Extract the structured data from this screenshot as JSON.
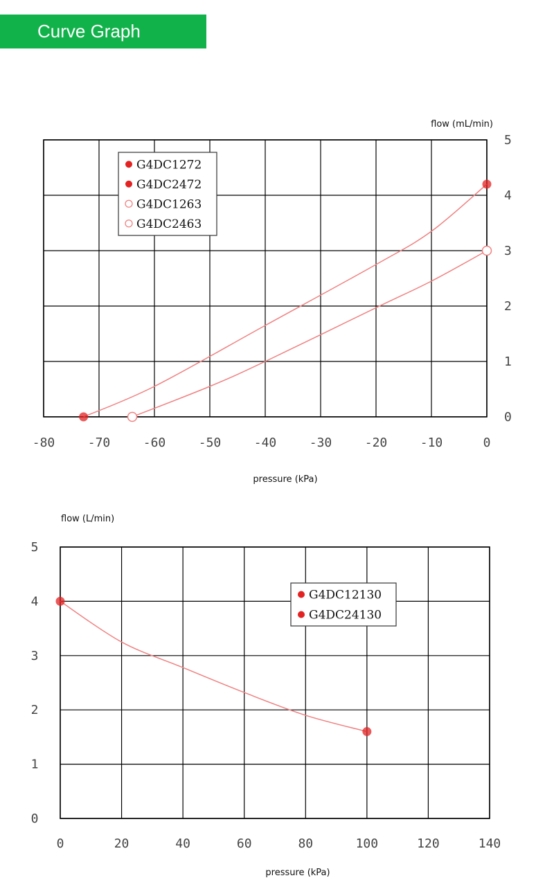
{
  "header": {
    "title": "Curve Graph"
  },
  "colors": {
    "header_bg": "#12b24b",
    "curve": "#f08080",
    "marker": "#e32222",
    "grid": "#000000"
  },
  "chart_data": [
    {
      "type": "line",
      "title": "",
      "xlabel": "pressure (kPa)",
      "ylabel": "flow (mL/min)",
      "xlim": [
        -80,
        0
      ],
      "ylim": [
        0,
        5
      ],
      "x_ticks": [
        "-80",
        "-70",
        "-60",
        "-50",
        "-40",
        "-30",
        "-20",
        "-10",
        "0"
      ],
      "y_ticks": [
        "0",
        "1",
        "2",
        "3",
        "4",
        "5"
      ],
      "grid": true,
      "legend": [
        "G4DC1272",
        "G4DC2472",
        "G4DC1263",
        "G4DC2463"
      ],
      "legend_position": "top-left",
      "series": [
        {
          "name": "G4DC1272 / G4DC2472",
          "marker": "filled",
          "x": [
            -72.8,
            -60,
            -40,
            -20,
            -10,
            0
          ],
          "y": [
            0,
            0.55,
            1.65,
            2.75,
            3.35,
            4.2
          ]
        },
        {
          "name": "G4DC1263 / G4DC2463",
          "marker": "hollow",
          "x": [
            -64,
            -50,
            -40,
            -20,
            -10,
            0
          ],
          "y": [
            0,
            0.55,
            1.0,
            1.97,
            2.45,
            3.0
          ]
        }
      ]
    },
    {
      "type": "line",
      "title": "",
      "xlabel": "pressure (kPa)",
      "ylabel": "flow (L/min)",
      "xlim": [
        0,
        140
      ],
      "ylim": [
        0,
        5
      ],
      "x_ticks": [
        "0",
        "20",
        "40",
        "60",
        "80",
        "100",
        "120",
        "140"
      ],
      "y_ticks": [
        "0",
        "1",
        "2",
        "3",
        "4",
        "5"
      ],
      "grid": true,
      "legend": [
        "G4DC12130",
        "G4DC24130"
      ],
      "legend_position": "top-right",
      "series": [
        {
          "name": "G4DC12130 / G4DC24130",
          "marker": "filled",
          "x": [
            0,
            20,
            40,
            60,
            80,
            100
          ],
          "y": [
            4.0,
            3.25,
            2.78,
            2.32,
            1.9,
            1.6
          ]
        }
      ]
    }
  ]
}
